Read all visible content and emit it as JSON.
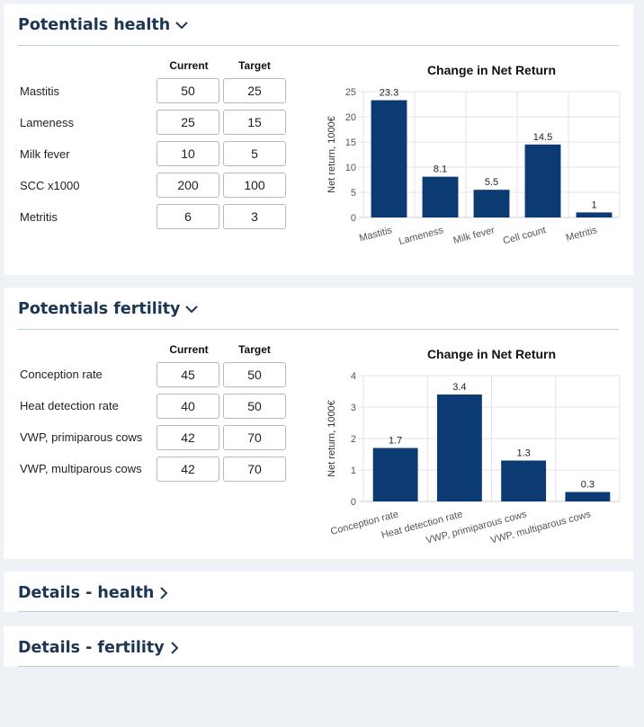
{
  "health": {
    "title": "Potentials health",
    "col_current": "Current",
    "col_target": "Target",
    "rows": [
      {
        "label": "Mastitis",
        "current": "50",
        "target": "25"
      },
      {
        "label": "Lameness",
        "current": "25",
        "target": "15"
      },
      {
        "label": "Milk fever",
        "current": "10",
        "target": "5"
      },
      {
        "label": "SCC x1000",
        "current": "200",
        "target": "100"
      },
      {
        "label": "Metritis",
        "current": "6",
        "target": "3"
      }
    ]
  },
  "fertility": {
    "title": "Potentials fertility",
    "col_current": "Current",
    "col_target": "Target",
    "rows": [
      {
        "label": "Conception rate",
        "current": "45",
        "target": "50"
      },
      {
        "label": "Heat detection rate",
        "current": "40",
        "target": "50"
      },
      {
        "label": "VWP, primiparous cows",
        "current": "42",
        "target": "70"
      },
      {
        "label": "VWP, multiparous cows",
        "current": "42",
        "target": "70"
      }
    ]
  },
  "details_health": {
    "title": "Details - health"
  },
  "details_fertility": {
    "title": "Details - fertility"
  },
  "colors": {
    "bar": "#0c3a72",
    "title": "#1c3553",
    "divider": "#b9d0dc",
    "background": "#eef2f6"
  },
  "chart_data": [
    {
      "type": "bar",
      "title": "Change in Net Return",
      "ylabel": "Net return, 1000€",
      "xlabel": "",
      "categories": [
        "Mastitis",
        "Lameness",
        "Milk fever",
        "Cell count",
        "Metritis"
      ],
      "values": [
        23.3,
        8.1,
        5.5,
        14.5,
        1
      ],
      "value_labels": [
        "23.3",
        "8.1",
        "5.5",
        "14.5",
        "1"
      ],
      "ylim": [
        0,
        25
      ],
      "yticks": [
        0,
        5,
        10,
        15,
        20,
        25
      ],
      "grid": true,
      "legend": "none"
    },
    {
      "type": "bar",
      "title": "Change in Net Return",
      "ylabel": "Net return, 1000€",
      "xlabel": "",
      "categories": [
        "Conception rate",
        "Heat detection rate",
        "VWP, primiparous cows",
        "VWP, multiparous cows"
      ],
      "values": [
        1.7,
        3.4,
        1.3,
        0.3
      ],
      "value_labels": [
        "1.7",
        "3.4",
        "1.3",
        "0.3"
      ],
      "ylim": [
        0,
        4
      ],
      "yticks": [
        0,
        1,
        2,
        3,
        4
      ],
      "grid": true,
      "legend": "none"
    }
  ]
}
